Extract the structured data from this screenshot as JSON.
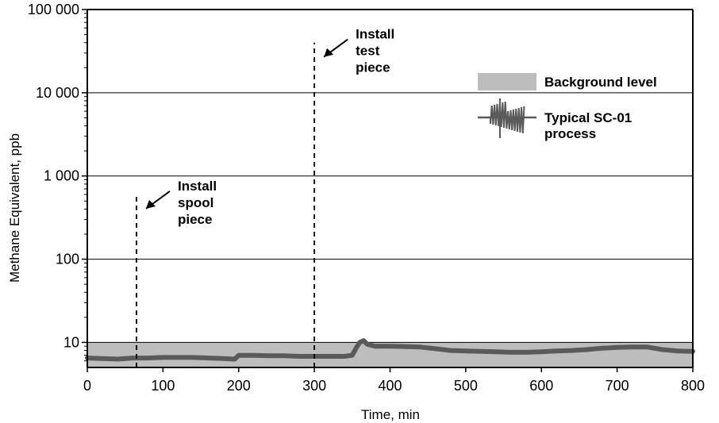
{
  "chart_data": {
    "type": "line",
    "title": "",
    "xlabel": "Time, min",
    "ylabel": "Methane Equivalent, ppb",
    "xlim": [
      0,
      800
    ],
    "ylim": [
      5,
      100000
    ],
    "yscale": "log",
    "grid": "horizontal major lines",
    "x_ticks": [
      0,
      100,
      200,
      300,
      400,
      500,
      600,
      700,
      800
    ],
    "x_tick_labels": [
      "0",
      "100",
      "200",
      "300",
      "400",
      "500",
      "600",
      "700",
      "800"
    ],
    "y_ticks": [
      10,
      100,
      1000,
      10000,
      100000
    ],
    "y_tick_labels": [
      "10",
      "100",
      "1 000",
      "10 000",
      "100 000"
    ],
    "background_band": {
      "name": "Background level",
      "y_from": 5,
      "y_to": 10,
      "color": "#bdbdbd"
    },
    "series": [
      {
        "name": "Typical SC-01 process",
        "color": "#5a5a5a",
        "x": [
          0,
          20,
          40,
          60,
          80,
          100,
          120,
          140,
          160,
          180,
          195,
          200,
          220,
          240,
          260,
          280,
          300,
          320,
          340,
          350,
          355,
          360,
          365,
          370,
          380,
          400,
          420,
          440,
          460,
          480,
          500,
          520,
          540,
          560,
          580,
          600,
          620,
          640,
          660,
          680,
          700,
          720,
          740,
          760,
          780,
          800
        ],
        "y": [
          6.5,
          6.4,
          6.3,
          6.5,
          6.5,
          6.6,
          6.6,
          6.6,
          6.5,
          6.4,
          6.3,
          7.0,
          7.0,
          6.9,
          6.9,
          6.8,
          6.8,
          6.8,
          6.8,
          7.0,
          8.5,
          10.0,
          10.5,
          9.5,
          9.0,
          9.0,
          8.9,
          8.8,
          8.4,
          8.0,
          7.9,
          7.8,
          7.7,
          7.6,
          7.6,
          7.7,
          7.9,
          8.0,
          8.2,
          8.5,
          8.7,
          8.8,
          8.8,
          8.2,
          7.9,
          7.8
        ]
      }
    ],
    "markers": [
      {
        "label": [
          "Install",
          "spool",
          "piece"
        ],
        "x": 65,
        "y_top": 600
      },
      {
        "label": [
          "Install",
          "test",
          "piece"
        ],
        "x": 300,
        "y_top": 40000
      }
    ],
    "legend_position": "top-right",
    "legend": [
      "Background level",
      "Typical SC-01 process"
    ]
  },
  "colors": {
    "band": "#bdbdbd",
    "series": "#5a5a5a",
    "axis": "#000000"
  }
}
